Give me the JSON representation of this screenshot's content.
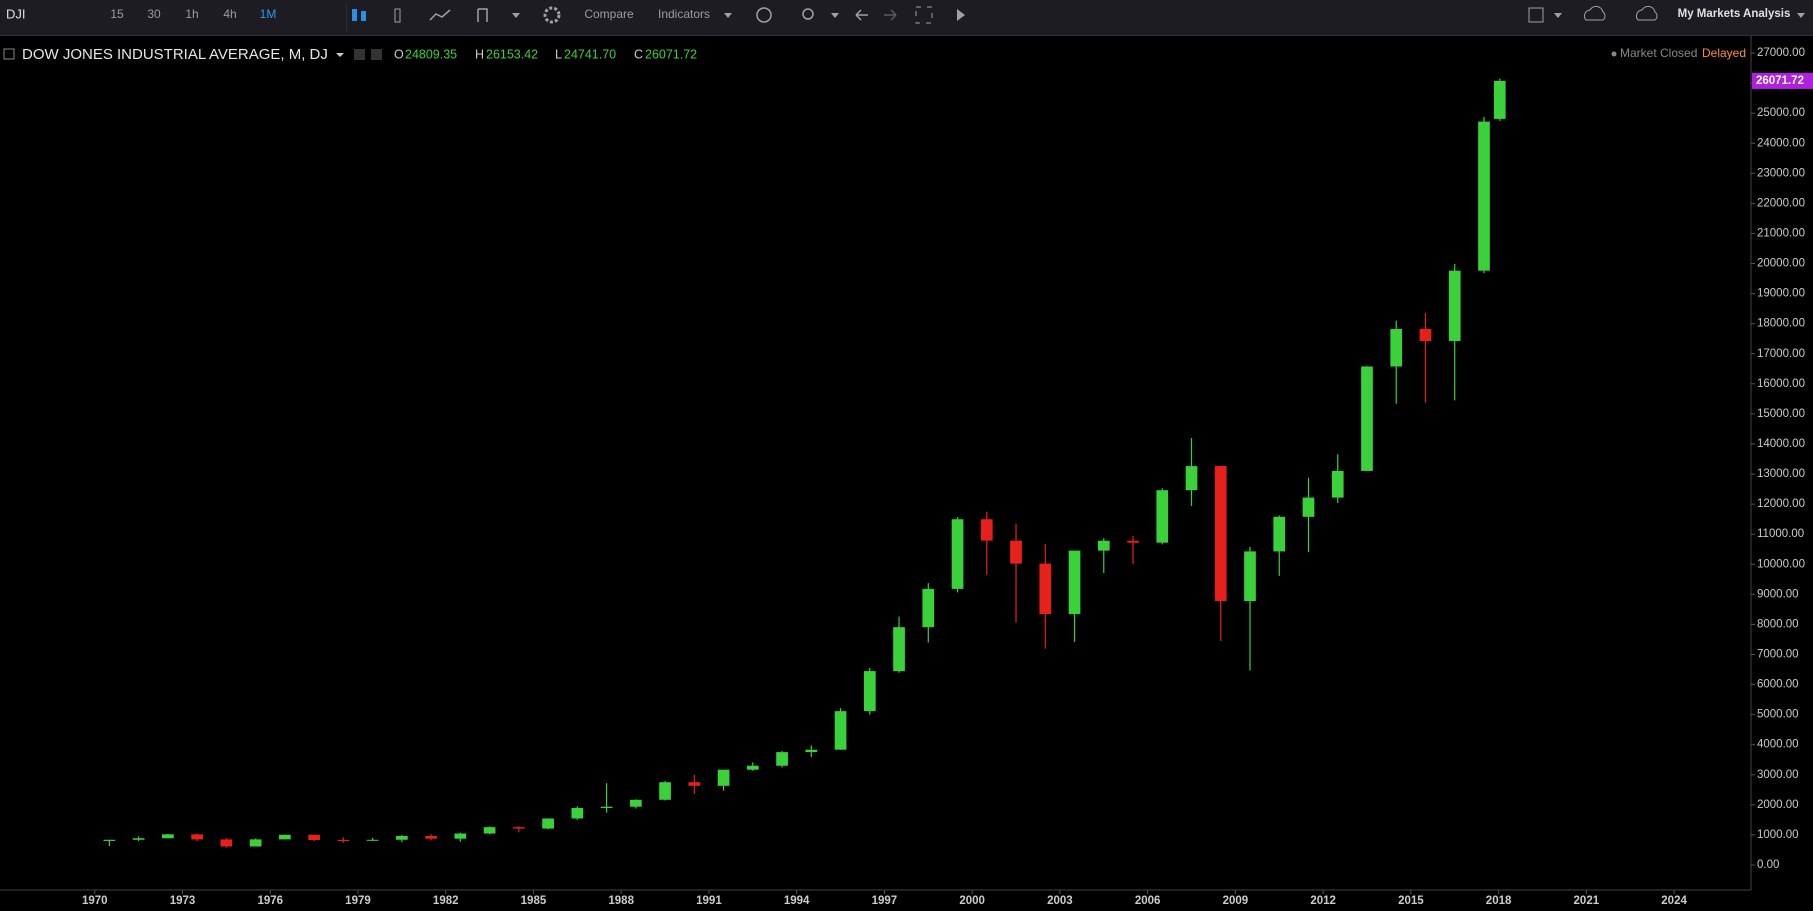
{
  "toolbar": {
    "symbol": "DJI",
    "intervals": [
      "15",
      "30",
      "1h",
      "4h",
      "1M"
    ],
    "compare": "Compare",
    "indicators": "Indicators",
    "layout": "My Markets Analysis"
  },
  "status": {
    "market": "Market Closed",
    "feed": "Delayed"
  },
  "legend": {
    "open_letter": "O",
    "high_letter": "H",
    "low_letter": "L",
    "close_letter": "C"
  },
  "chart_data": {
    "type": "candlestick",
    "title": "DOW JONES INDUSTRIAL AVERAGE, M, DJ",
    "up_color": "#3bd13b",
    "down_color": "#e8201c",
    "xlim": [
      1966.76,
      2026.63
    ],
    "xticks": [
      1970,
      1973,
      1976,
      1979,
      1982,
      1985,
      1988,
      1991,
      1994,
      1997,
      2000,
      2003,
      2006,
      2009,
      2012,
      2015,
      2018,
      2021,
      2024
    ],
    "ylim": [
      -831,
      27566
    ],
    "yticks": [
      {
        "value": 0,
        "label": "0.00"
      },
      {
        "value": 1000,
        "label": "1000.00"
      },
      {
        "value": 2000,
        "label": "2000.00"
      },
      {
        "value": 3000,
        "label": "3000.00"
      },
      {
        "value": 4000,
        "label": "4000.00"
      },
      {
        "value": 5000,
        "label": "5000.00"
      },
      {
        "value": 6000,
        "label": "6000.00"
      },
      {
        "value": 7000,
        "label": "7000.00"
      },
      {
        "value": 8000,
        "label": "8000.00"
      },
      {
        "value": 9000,
        "label": "9000.00"
      },
      {
        "value": 10000,
        "label": "10000.00"
      },
      {
        "value": 11000,
        "label": "11000.00"
      },
      {
        "value": 12000,
        "label": "12000.00"
      },
      {
        "value": 13000,
        "label": "13000.00"
      },
      {
        "value": 14000,
        "label": "14000.00"
      },
      {
        "value": 15000,
        "label": "15000.00"
      },
      {
        "value": 16000,
        "label": "16000.00"
      },
      {
        "value": 17000,
        "label": "17000.00"
      },
      {
        "value": 18000,
        "label": "18000.00"
      },
      {
        "value": 19000,
        "label": "19000.00"
      },
      {
        "value": 20000,
        "label": "20000.00"
      },
      {
        "value": 21000,
        "label": "21000.00"
      },
      {
        "value": 22000,
        "label": "22000.00"
      },
      {
        "value": 23000,
        "label": "23000.00"
      },
      {
        "value": 24000,
        "label": "24000.00"
      },
      {
        "value": 25000,
        "label": "25000.00"
      },
      {
        "value": 26000,
        "label": "26000.00"
      },
      {
        "value": 27000,
        "label": "27000.00"
      }
    ],
    "x": [
      1970.5,
      1971.5,
      1972.5,
      1973.5,
      1974.5,
      1975.5,
      1976.5,
      1977.5,
      1978.5,
      1979.5,
      1980.5,
      1981.5,
      1982.5,
      1983.5,
      1984.5,
      1985.5,
      1986.5,
      1987.5,
      1988.5,
      1989.5,
      1990.5,
      1991.5,
      1992.5,
      1993.5,
      1994.5,
      1995.5,
      1996.5,
      1997.5,
      1998.5,
      1999.5,
      2000.5,
      2001.5,
      2002.5,
      2003.5,
      2004.5,
      2005.5,
      2006.5,
      2007.5,
      2008.5,
      2009.5,
      2010.5,
      2011.5,
      2012.5,
      2013.5,
      2014.5,
      2015.5,
      2016.5,
      2017.5,
      2018.04
    ],
    "open": [
      800,
      839,
      890,
      1020,
      851,
      616,
      852,
      1004,
      831,
      805,
      839,
      964,
      875,
      1047,
      1259,
      1212,
      1547,
      1896,
      1939,
      2169,
      2753,
      2634,
      3169,
      3301,
      3754,
      3834,
      5117,
      6448,
      7908,
      9181,
      11497,
      10787,
      10022,
      8342,
      10454,
      10783,
      10718,
      12463,
      13265,
      8776,
      10428,
      11578,
      12218,
      13104,
      16577,
      17823,
      17425,
      19763,
      24809.35
    ],
    "high": [
      842,
      951,
      1036,
      1052,
      892,
      882,
      1015,
      1015,
      920,
      898,
      1000,
      1024,
      1071,
      1287,
      1287,
      1553,
      1956,
      2722,
      2184,
      2791,
      3000,
      3168,
      3413,
      3794,
      3978,
      5216,
      6560,
      8259,
      9374,
      11569,
      11750,
      11350,
      10673,
      10454,
      10868,
      10940,
      12529,
      14198,
      13279,
      10580,
      11625,
      12876,
      13661,
      16588,
      18103,
      18351,
      19987,
      24876,
      26153.42
    ],
    "low": [
      631,
      798,
      889,
      788,
      577,
      632,
      858,
      800,
      742,
      796,
      759,
      824,
      776,
      1027,
      1086,
      1185,
      1502,
      1739,
      1879,
      2145,
      2365,
      2470,
      3136,
      3241,
      3593,
      3832,
      5000,
      6391,
      7400,
      9063,
      9654,
      8062,
      7197,
      7416,
      9708,
      10000,
      10661,
      11939,
      7449,
      6470,
      9614,
      10405,
      12035,
      13104,
      15340,
      15370,
      15451,
      19677,
      24741.7
    ],
    "close": [
      839,
      890,
      1020,
      851,
      616,
      852,
      1004,
      831,
      805,
      839,
      964,
      875,
      1047,
      1259,
      1212,
      1547,
      1896,
      1939,
      2169,
      2753,
      2634,
      3169,
      3301,
      3754,
      3834,
      5117,
      6448,
      7908,
      9181,
      11497,
      10787,
      10022,
      8342,
      10454,
      10783,
      10718,
      12463,
      13265,
      8776,
      10428,
      11578,
      12218,
      13104,
      16577,
      17823,
      17425,
      19763,
      24719,
      26071.72
    ],
    "last_labels": {
      "open": "24809.35",
      "high": "26153.42",
      "low": "24741.70",
      "close": "26071.72"
    },
    "price_tag_color": "#b11fe0"
  }
}
